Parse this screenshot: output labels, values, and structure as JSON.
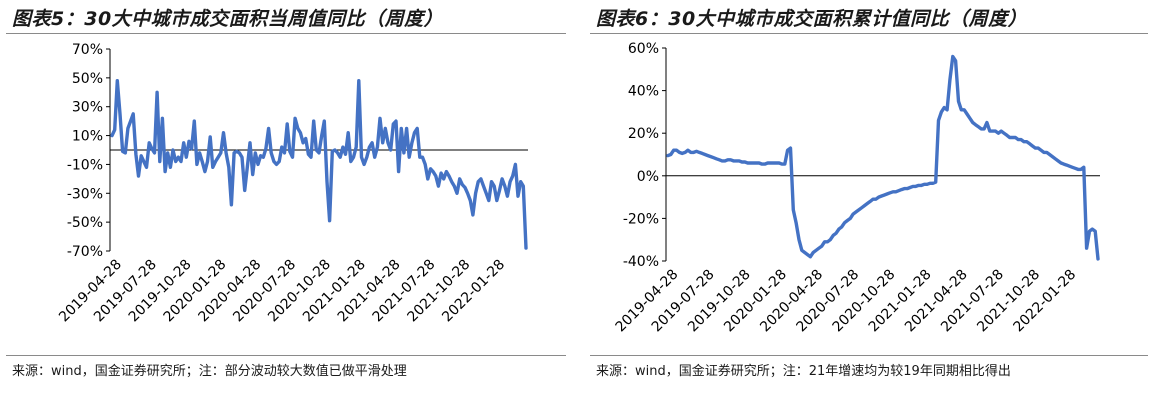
{
  "chart_data": [
    {
      "type": "line",
      "title": "图表5：30大中城市成交面积当周值同比（周度）",
      "source": "来源：wind，国金证券研究所；注：部分波动较大数值已做平滑处理",
      "x_tick_labels": [
        "2019-04-28",
        "2019-07-28",
        "2019-10-28",
        "2020-01-28",
        "2020-04-28",
        "2020-07-28",
        "2020-10-28",
        "2021-01-28",
        "2021-04-28",
        "2021-07-28",
        "2021-10-28",
        "2022-01-28"
      ],
      "y_tick_labels": [
        "70%",
        "50%",
        "30%",
        "10%",
        "-10%",
        "-30%",
        "-50%",
        "-70%"
      ],
      "ylim": [
        -70,
        70
      ],
      "unit": "%",
      "line_color": "#4472C4",
      "series": [
        {
          "values": [
            10,
            14,
            48,
            25,
            -1,
            -2,
            15,
            20,
            25,
            -3,
            -18,
            -4,
            -8,
            -12,
            5,
            1,
            -2,
            40,
            -8,
            22,
            -15,
            -2,
            -12,
            0,
            -8,
            -5,
            -8,
            5,
            -5,
            6,
            1,
            20,
            -10,
            -2,
            -8,
            -15,
            -8,
            9,
            -12,
            -8,
            -5,
            -2,
            12,
            -2,
            -12,
            -38,
            -2,
            -1,
            -2,
            -5,
            -28,
            -12,
            5,
            -17,
            -2,
            -10,
            -4,
            -5,
            1,
            15,
            -2,
            -8,
            -10,
            -8,
            2,
            -2,
            18,
            -1,
            -5,
            22,
            15,
            12,
            5,
            8,
            -3,
            -5,
            20,
            0,
            -2,
            10,
            20,
            -22,
            -49,
            -1,
            0,
            -2,
            -5,
            2,
            -3,
            12,
            -8,
            -5,
            2,
            48,
            -5,
            -10,
            -5,
            2,
            5,
            -5,
            2,
            22,
            5,
            15,
            5,
            0,
            18,
            20,
            -15,
            15,
            -2,
            15,
            -5,
            5,
            12,
            15,
            -5,
            -5,
            -10,
            -20,
            -13,
            -15,
            -18,
            -25,
            -16,
            -20,
            -15,
            -18,
            -22,
            -25,
            -30,
            -20,
            -24,
            -26,
            -30,
            -35,
            -45,
            -30,
            -22,
            -20,
            -25,
            -30,
            -35,
            -22,
            -25,
            -35,
            -28,
            -20,
            -25,
            -32,
            -22,
            -18,
            -10,
            -32,
            -22,
            -25,
            -68
          ]
        }
      ]
    },
    {
      "type": "line",
      "title": "图表6：30大中城市成交面积累计值同比（周度）",
      "source": "来源：wind，国金证券研究所；注：21年增速均为较19年同期相比得出",
      "x_tick_labels": [
        "2019-04-28",
        "2019-07-28",
        "2019-10-28",
        "2020-01-28",
        "2020-04-28",
        "2020-07-28",
        "2020-10-28",
        "2021-01-28",
        "2021-04-28",
        "2021-07-28",
        "2021-10-28",
        "2022-01-28"
      ],
      "y_tick_labels": [
        "60%",
        "40%",
        "20%",
        "0%",
        "-20%",
        "-40%"
      ],
      "ylim": [
        -40,
        60
      ],
      "unit": "%",
      "line_color": "#4472C4",
      "series": [
        {
          "values": [
            9.5,
            10,
            12,
            12,
            11,
            10.5,
            11,
            12,
            11,
            11,
            11.5,
            11,
            10.5,
            10,
            9.5,
            9,
            8.5,
            8,
            7.5,
            7,
            7,
            7.5,
            7.5,
            7,
            7,
            7,
            6.5,
            6.5,
            6,
            6,
            6,
            6,
            6,
            5.5,
            5.5,
            6,
            6,
            6,
            6,
            6,
            5.5,
            5.5,
            12,
            13,
            -16,
            -22,
            -30,
            -35,
            -36,
            -37,
            -38,
            -36,
            -35,
            -34,
            -33,
            -31,
            -31,
            -30,
            -28,
            -27,
            -25,
            -24,
            -22,
            -21,
            -20,
            -18,
            -17,
            -16,
            -15,
            -14,
            -13,
            -12,
            -11,
            -11,
            -10,
            -9.5,
            -9,
            -8.5,
            -8,
            -7.5,
            -7.5,
            -7,
            -6.5,
            -6,
            -6,
            -5.5,
            -5,
            -5,
            -4.5,
            -4.5,
            -4,
            -4,
            -3.5,
            -3.5,
            -3,
            26,
            30,
            32,
            31,
            45,
            56,
            54,
            35,
            31,
            31,
            29,
            27,
            25,
            24,
            23,
            22,
            22,
            25,
            21,
            21,
            21,
            20,
            21,
            20,
            19,
            18,
            18,
            18,
            17,
            17,
            16,
            16,
            15,
            14,
            13,
            13,
            12,
            11,
            11,
            10,
            9,
            8,
            7,
            6,
            5.5,
            5,
            4.5,
            4,
            3.5,
            3,
            3,
            4,
            -34,
            -26,
            -25,
            -26,
            -39
          ]
        }
      ]
    }
  ]
}
